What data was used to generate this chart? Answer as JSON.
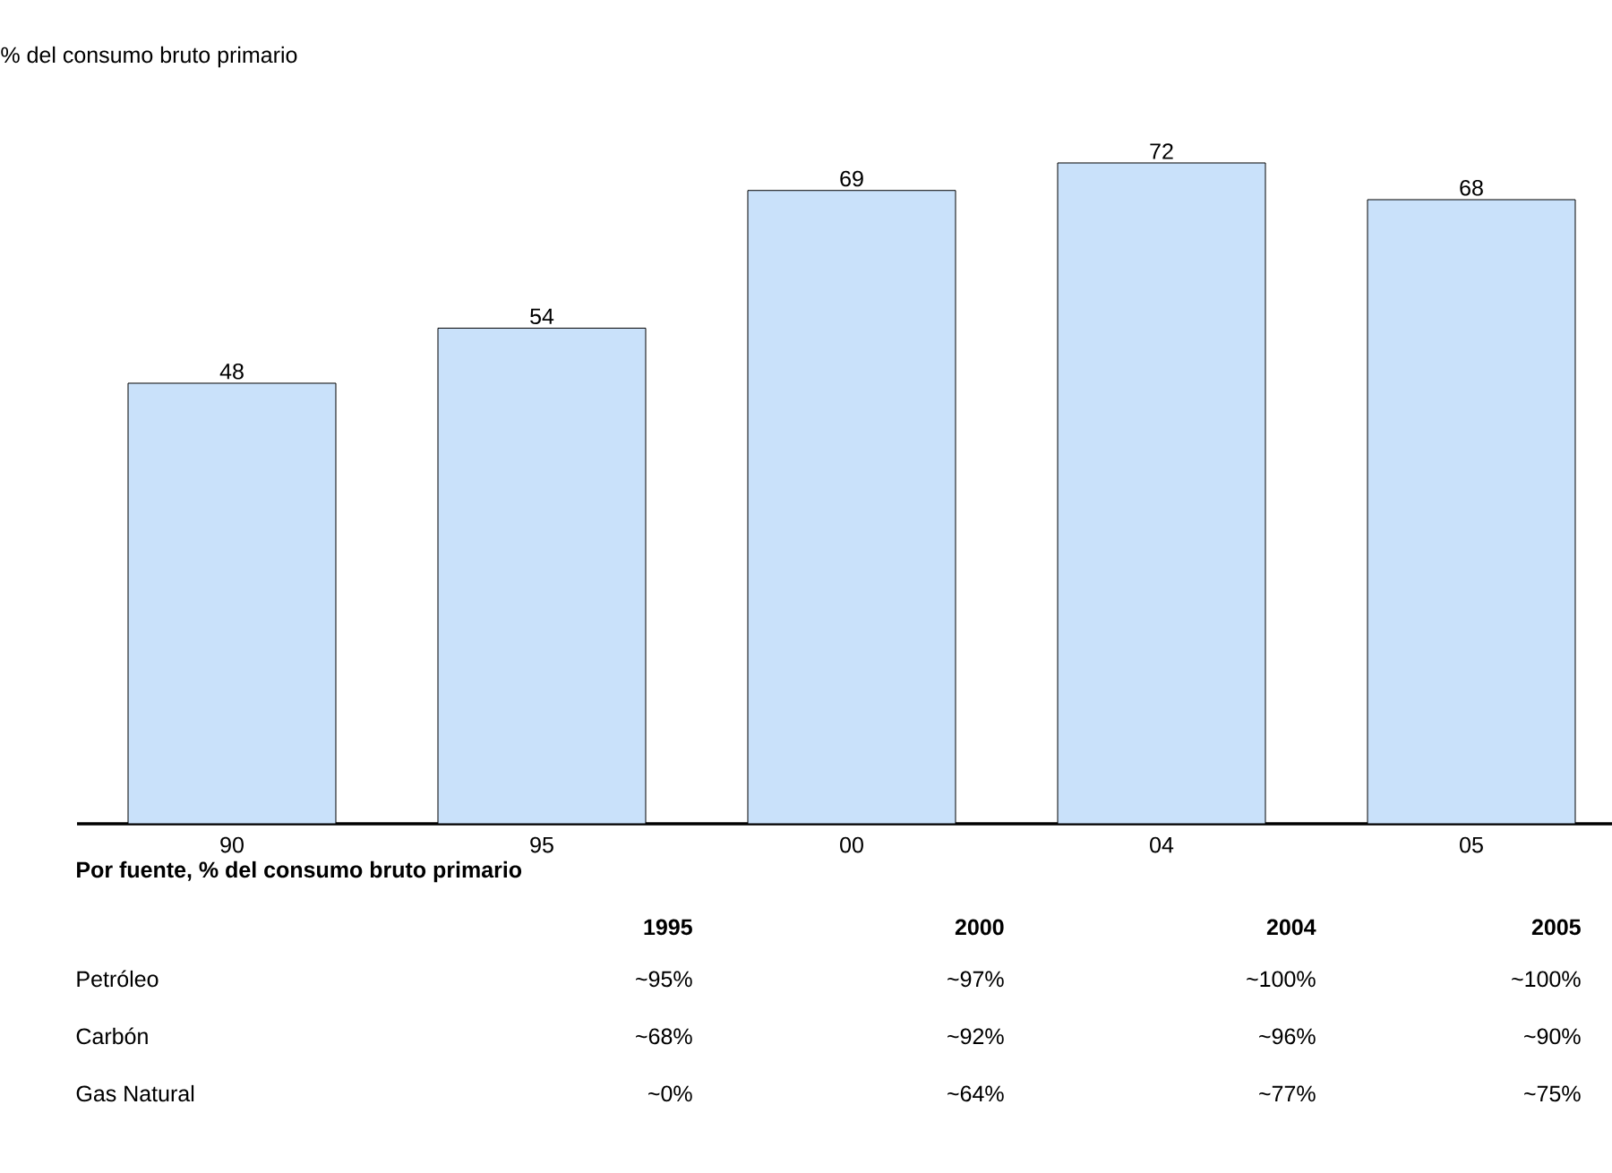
{
  "chart_data": {
    "type": "bar",
    "title": "% del consumo bruto primario",
    "categories": [
      "90",
      "95",
      "00",
      "04",
      "05"
    ],
    "values": [
      48,
      54,
      69,
      72,
      68
    ],
    "color": "#c9e1fa",
    "data_labels": true,
    "annotations": [
      "Por fuente, % del consumo bruto primario",
      "1995",
      "2000",
      "2004",
      "2005",
      "Petróleo",
      "~95%",
      "~97%",
      "~100%",
      "~100%",
      "Carbón",
      "~68%",
      "~92%",
      "~96%",
      "~90%",
      "Gas Natural",
      "~0%",
      "~64%",
      "~77%",
      "~75%"
    ]
  }
}
